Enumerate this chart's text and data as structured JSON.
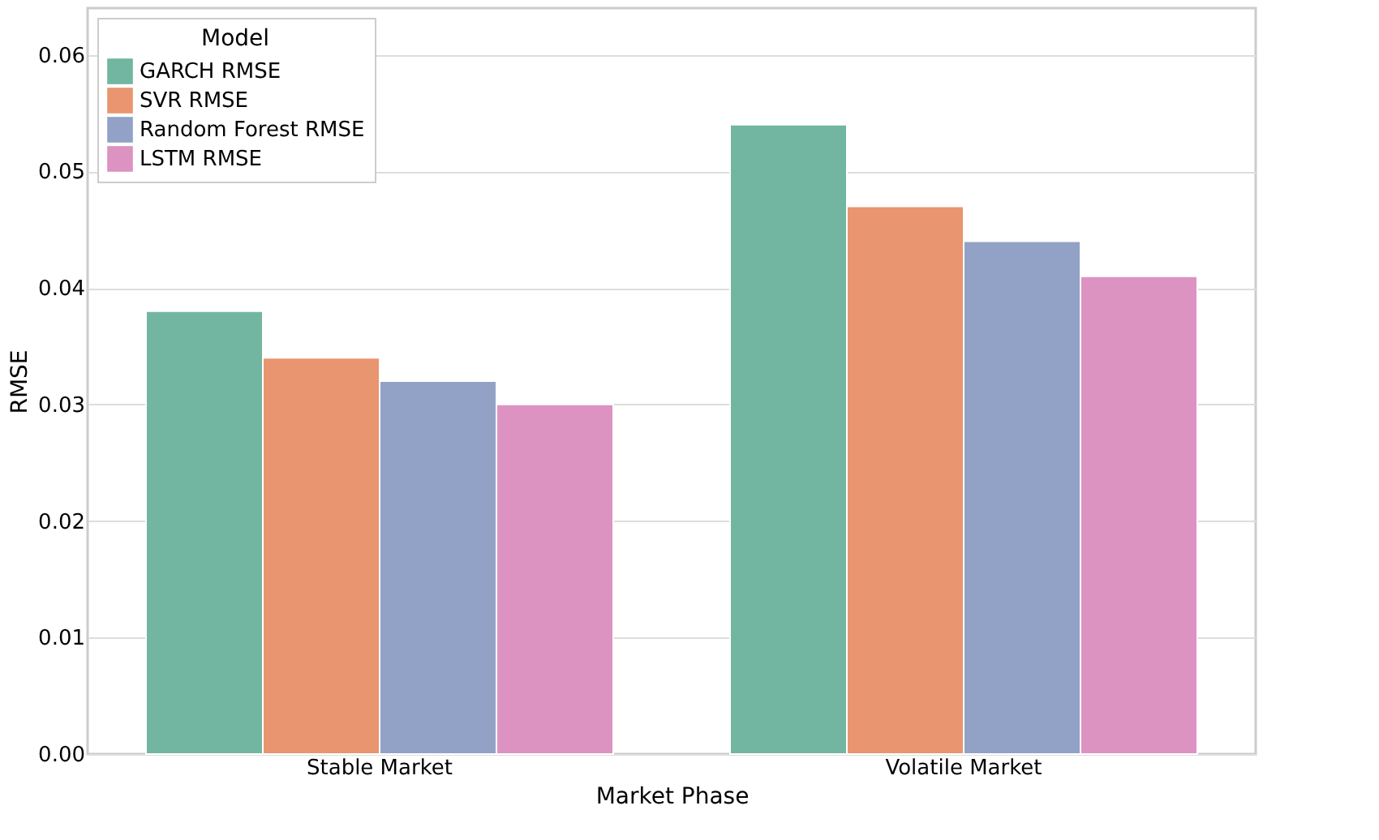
{
  "chart_data": {
    "type": "bar",
    "xlabel": "Market Phase",
    "ylabel": "RMSE",
    "legend_title": "Model",
    "categories": [
      "Stable Market",
      "Volatile Market"
    ],
    "series": [
      {
        "name": "GARCH RMSE",
        "color": "#72b6a1",
        "values": [
          0.038,
          0.054
        ]
      },
      {
        "name": "SVR RMSE",
        "color": "#e9956f",
        "values": [
          0.034,
          0.047
        ]
      },
      {
        "name": "Random Forest RMSE",
        "color": "#92a2c6",
        "values": [
          0.032,
          0.044
        ]
      },
      {
        "name": "LSTM RMSE",
        "color": "#dc93c1",
        "values": [
          0.03,
          0.041
        ]
      }
    ],
    "ylim": [
      0,
      0.064
    ],
    "yticks": [
      {
        "value": 0,
        "label": "0.00"
      },
      {
        "value": 0.01,
        "label": "0.01"
      },
      {
        "value": 0.02,
        "label": "0.02"
      },
      {
        "value": 0.03,
        "label": "0.03"
      },
      {
        "value": 0.04,
        "label": "0.04"
      },
      {
        "value": 0.05,
        "label": "0.05"
      },
      {
        "value": 0.06,
        "label": "0.06"
      }
    ],
    "grid": "y",
    "legend": "top left"
  }
}
